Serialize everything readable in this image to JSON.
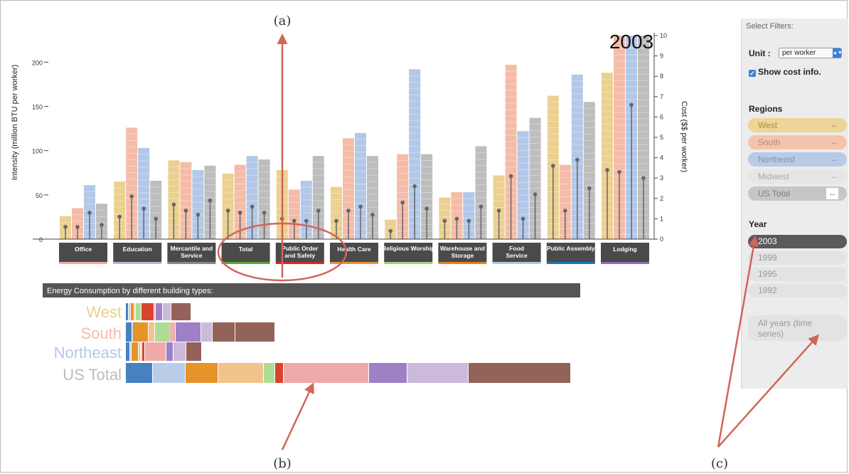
{
  "chart": {
    "year_label": "2003",
    "y_left_label": "Intensity (million BTU per worker)",
    "y_right_label": "Cost ($$ per worker)",
    "left_ticks": [
      "0",
      "50",
      "100",
      "150",
      "200"
    ],
    "right_ticks": [
      "0",
      "1",
      "2",
      "3",
      "4",
      "5",
      "6",
      "7",
      "8",
      "9",
      "10"
    ]
  },
  "chart_data": {
    "type": "bar",
    "categories": [
      "Office",
      "Education",
      "Mercantile and Service",
      "Total",
      "Public Order and Safety",
      "Health Care",
      "Religious Worship",
      "Warehouse and Storage",
      "Food Service",
      "Public Assembly",
      "Lodging"
    ],
    "series": [
      {
        "name": "West",
        "values": [
          26,
          65,
          89,
          74,
          78,
          59,
          22,
          47,
          72,
          162,
          188
        ]
      },
      {
        "name": "South",
        "values": [
          35,
          126,
          87,
          84,
          56,
          114,
          96,
          53,
          197,
          84,
          230
        ]
      },
      {
        "name": "Northeast",
        "values": [
          61,
          103,
          78,
          94,
          66,
          120,
          192,
          53,
          122,
          186,
          230
        ]
      },
      {
        "name": "US Total",
        "values": [
          40,
          66,
          83,
          90,
          94,
          94,
          96,
          105,
          137,
          155,
          230
        ]
      }
    ],
    "cost_series": [
      {
        "name": "West",
        "values": [
          0.6,
          1.1,
          1.7,
          1.4,
          1.0,
          0.9,
          0.4,
          0.9,
          1.4,
          3.6,
          3.4
        ]
      },
      {
        "name": "South",
        "values": [
          0.6,
          2.1,
          1.4,
          1.3,
          0.9,
          1.4,
          1.8,
          1.0,
          3.1,
          1.4,
          3.3
        ]
      },
      {
        "name": "Northeast",
        "values": [
          1.3,
          1.5,
          1.2,
          1.6,
          0.9,
          1.6,
          2.6,
          0.9,
          1.0,
          3.9,
          6.6
        ]
      },
      {
        "name": "US Total",
        "values": [
          0.7,
          1.0,
          1.9,
          1.3,
          1.4,
          1.2,
          1.5,
          1.6,
          2.2,
          2.5,
          3.0
        ]
      }
    ],
    "y_left_label": "Intensity (million BTU per worker)",
    "y_right_label": "Cost ($$ per worker)",
    "ylim": [
      0,
      230
    ],
    "ylim_right": [
      0,
      10
    ],
    "category_colors": [
      "#f2a8a7",
      "#c5b0d5",
      "#888888",
      "#5aa63a",
      "#d62728",
      "#e69538",
      "#9bd283",
      "#e6801e",
      "#aec7e8",
      "#1f77b4",
      "#8e6ac2"
    ],
    "colors": {
      "West": "#ebd08f",
      "South": "#f4bca7",
      "Northeast": "#b3c8e8",
      "US Total": "#bdbdbd"
    }
  },
  "stack": {
    "title": "Energy Consumption by different building types:",
    "rows": [
      {
        "label": "West",
        "color": "#ebd08f",
        "segments": [
          4,
          3,
          5,
          2,
          8,
          18,
          2,
          10,
          12,
          28
        ]
      },
      {
        "label": "South",
        "color": "#f4bca7",
        "segments": [
          9,
          1,
          22,
          9,
          22,
          2,
          5,
          36,
          16,
          32,
          56
        ]
      },
      {
        "label": "Northeast",
        "color": "#b3c8e8",
        "segments": [
          6,
          2,
          10,
          3,
          2,
          4,
          30,
          10,
          18,
          22
        ]
      },
      {
        "label": "US Total",
        "color": "#bdbdbd",
        "segments": [
          38,
          46,
          46,
          64,
          16,
          12,
          120,
          54,
          86,
          144
        ]
      }
    ],
    "segment_colors": [
      "#4681c1",
      "#bacde8",
      "#e6932a",
      "#f2c38b",
      "#aedc94",
      "#d8432e",
      "#eeaaaa",
      "#9d80c6",
      "#cbbadb",
      "#936258"
    ]
  },
  "filters": {
    "title": "Select Filters:",
    "unit_label": "Unit :",
    "unit_value": "per worker",
    "show_cost_label": "Show cost info.",
    "regions_heading": "Regions",
    "regions": [
      {
        "label": "West",
        "bg": "#ecd596",
        "color": "#a88d44"
      },
      {
        "label": "South",
        "bg": "#f4c3ae",
        "color": "#b58874"
      },
      {
        "label": "Northeast",
        "bg": "#b8cbe6",
        "color": "#7f95b4"
      },
      {
        "label": "Midwest",
        "bg": "#e6e6e6",
        "color": "#aaaaaa"
      },
      {
        "label": "US Total",
        "bg": "#c6c6c6",
        "color": "#7f7f7f"
      }
    ],
    "swap_icon": "↔",
    "year_heading": "Year",
    "years": [
      "2003",
      "1999",
      "1995",
      "1992"
    ],
    "all_years": "All years (time series)"
  },
  "annotations": {
    "a": "(a)",
    "b": "(b)",
    "c": "(c)"
  }
}
